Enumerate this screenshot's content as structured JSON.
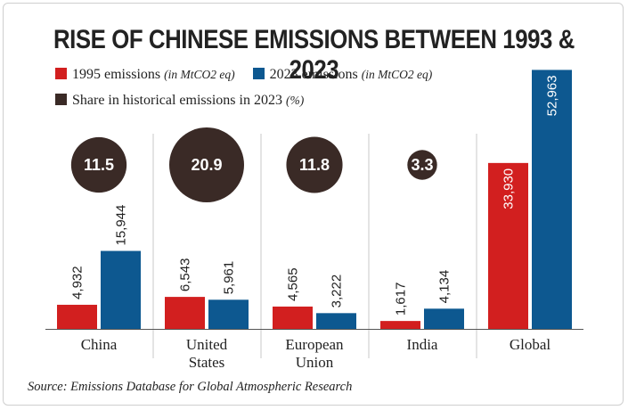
{
  "chart_data": {
    "type": "bar",
    "title": "RISE OF CHINESE EMISSIONS BETWEEN 1993 & 2023",
    "categories": [
      "China",
      "United States",
      "European Union",
      "India",
      "Global"
    ],
    "series": [
      {
        "name": "1995 emissions",
        "unit_note": "(in MtCO2 eq)",
        "color": "#d21f1f",
        "values": [
          4932,
          6543,
          4565,
          1617,
          33930
        ],
        "labels": [
          "4,932",
          "6,543",
          "4,565",
          "1,617",
          "33,930"
        ]
      },
      {
        "name": "2023 emissions",
        "unit_note": "(in MtCO2 eq)",
        "color": "#0d5890",
        "values": [
          15944,
          5961,
          3222,
          4134,
          52963
        ],
        "labels": [
          "15,944",
          "5,961",
          "3,222",
          "4,134",
          "52,963"
        ]
      }
    ],
    "share": {
      "name": "Share in historical emissions in 2023",
      "unit_note": "(%)",
      "color": "#3a2a26",
      "values": [
        11.5,
        20.9,
        11.8,
        3.3,
        null
      ],
      "labels": [
        "11.5",
        "20.9",
        "11.8",
        "3.3",
        ""
      ]
    },
    "ylim": [
      0,
      54500
    ],
    "source": "Source: Emissions Database for Global Atmospheric Research"
  }
}
